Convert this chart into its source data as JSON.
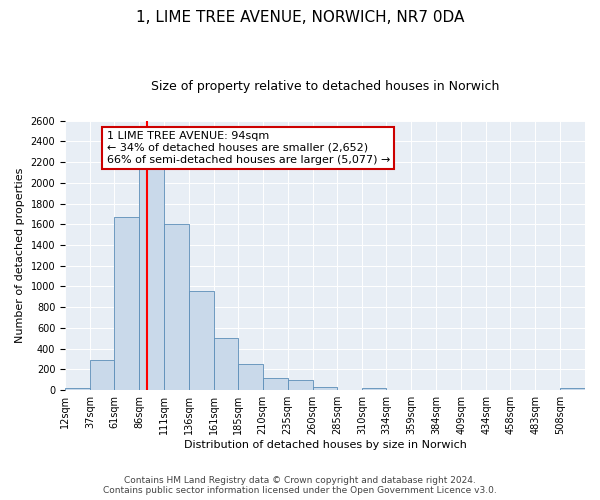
{
  "title": "1, LIME TREE AVENUE, NORWICH, NR7 0DA",
  "subtitle": "Size of property relative to detached houses in Norwich",
  "xlabel": "Distribution of detached houses by size in Norwich",
  "ylabel": "Number of detached properties",
  "bin_labels": [
    "12sqm",
    "37sqm",
    "61sqm",
    "86sqm",
    "111sqm",
    "136sqm",
    "161sqm",
    "185sqm",
    "210sqm",
    "235sqm",
    "260sqm",
    "285sqm",
    "310sqm",
    "334sqm",
    "359sqm",
    "384sqm",
    "409sqm",
    "434sqm",
    "458sqm",
    "483sqm",
    "508sqm"
  ],
  "bin_edges": [
    12,
    37,
    61,
    86,
    111,
    136,
    161,
    185,
    210,
    235,
    260,
    285,
    310,
    334,
    359,
    384,
    409,
    434,
    458,
    483,
    508,
    533
  ],
  "bar_heights": [
    20,
    295,
    1670,
    2150,
    1600,
    960,
    505,
    255,
    120,
    95,
    30,
    5,
    20,
    5,
    5,
    5,
    5,
    5,
    5,
    5,
    20
  ],
  "bar_color": "#c9d9ea",
  "bar_edge_color": "#5b8db8",
  "red_line_x": 94,
  "annotation_title": "1 LIME TREE AVENUE: 94sqm",
  "annotation_line1": "← 34% of detached houses are smaller (2,652)",
  "annotation_line2": "66% of semi-detached houses are larger (5,077) →",
  "annotation_box_color": "#ffffff",
  "annotation_box_edge": "#cc0000",
  "ylim": [
    0,
    2600
  ],
  "yticks": [
    0,
    200,
    400,
    600,
    800,
    1000,
    1200,
    1400,
    1600,
    1800,
    2000,
    2200,
    2400,
    2600
  ],
  "footer_line1": "Contains HM Land Registry data © Crown copyright and database right 2024.",
  "footer_line2": "Contains public sector information licensed under the Open Government Licence v3.0.",
  "title_fontsize": 11,
  "subtitle_fontsize": 9,
  "axis_label_fontsize": 8,
  "tick_fontsize": 7,
  "annotation_fontsize": 8,
  "footer_fontsize": 6.5
}
